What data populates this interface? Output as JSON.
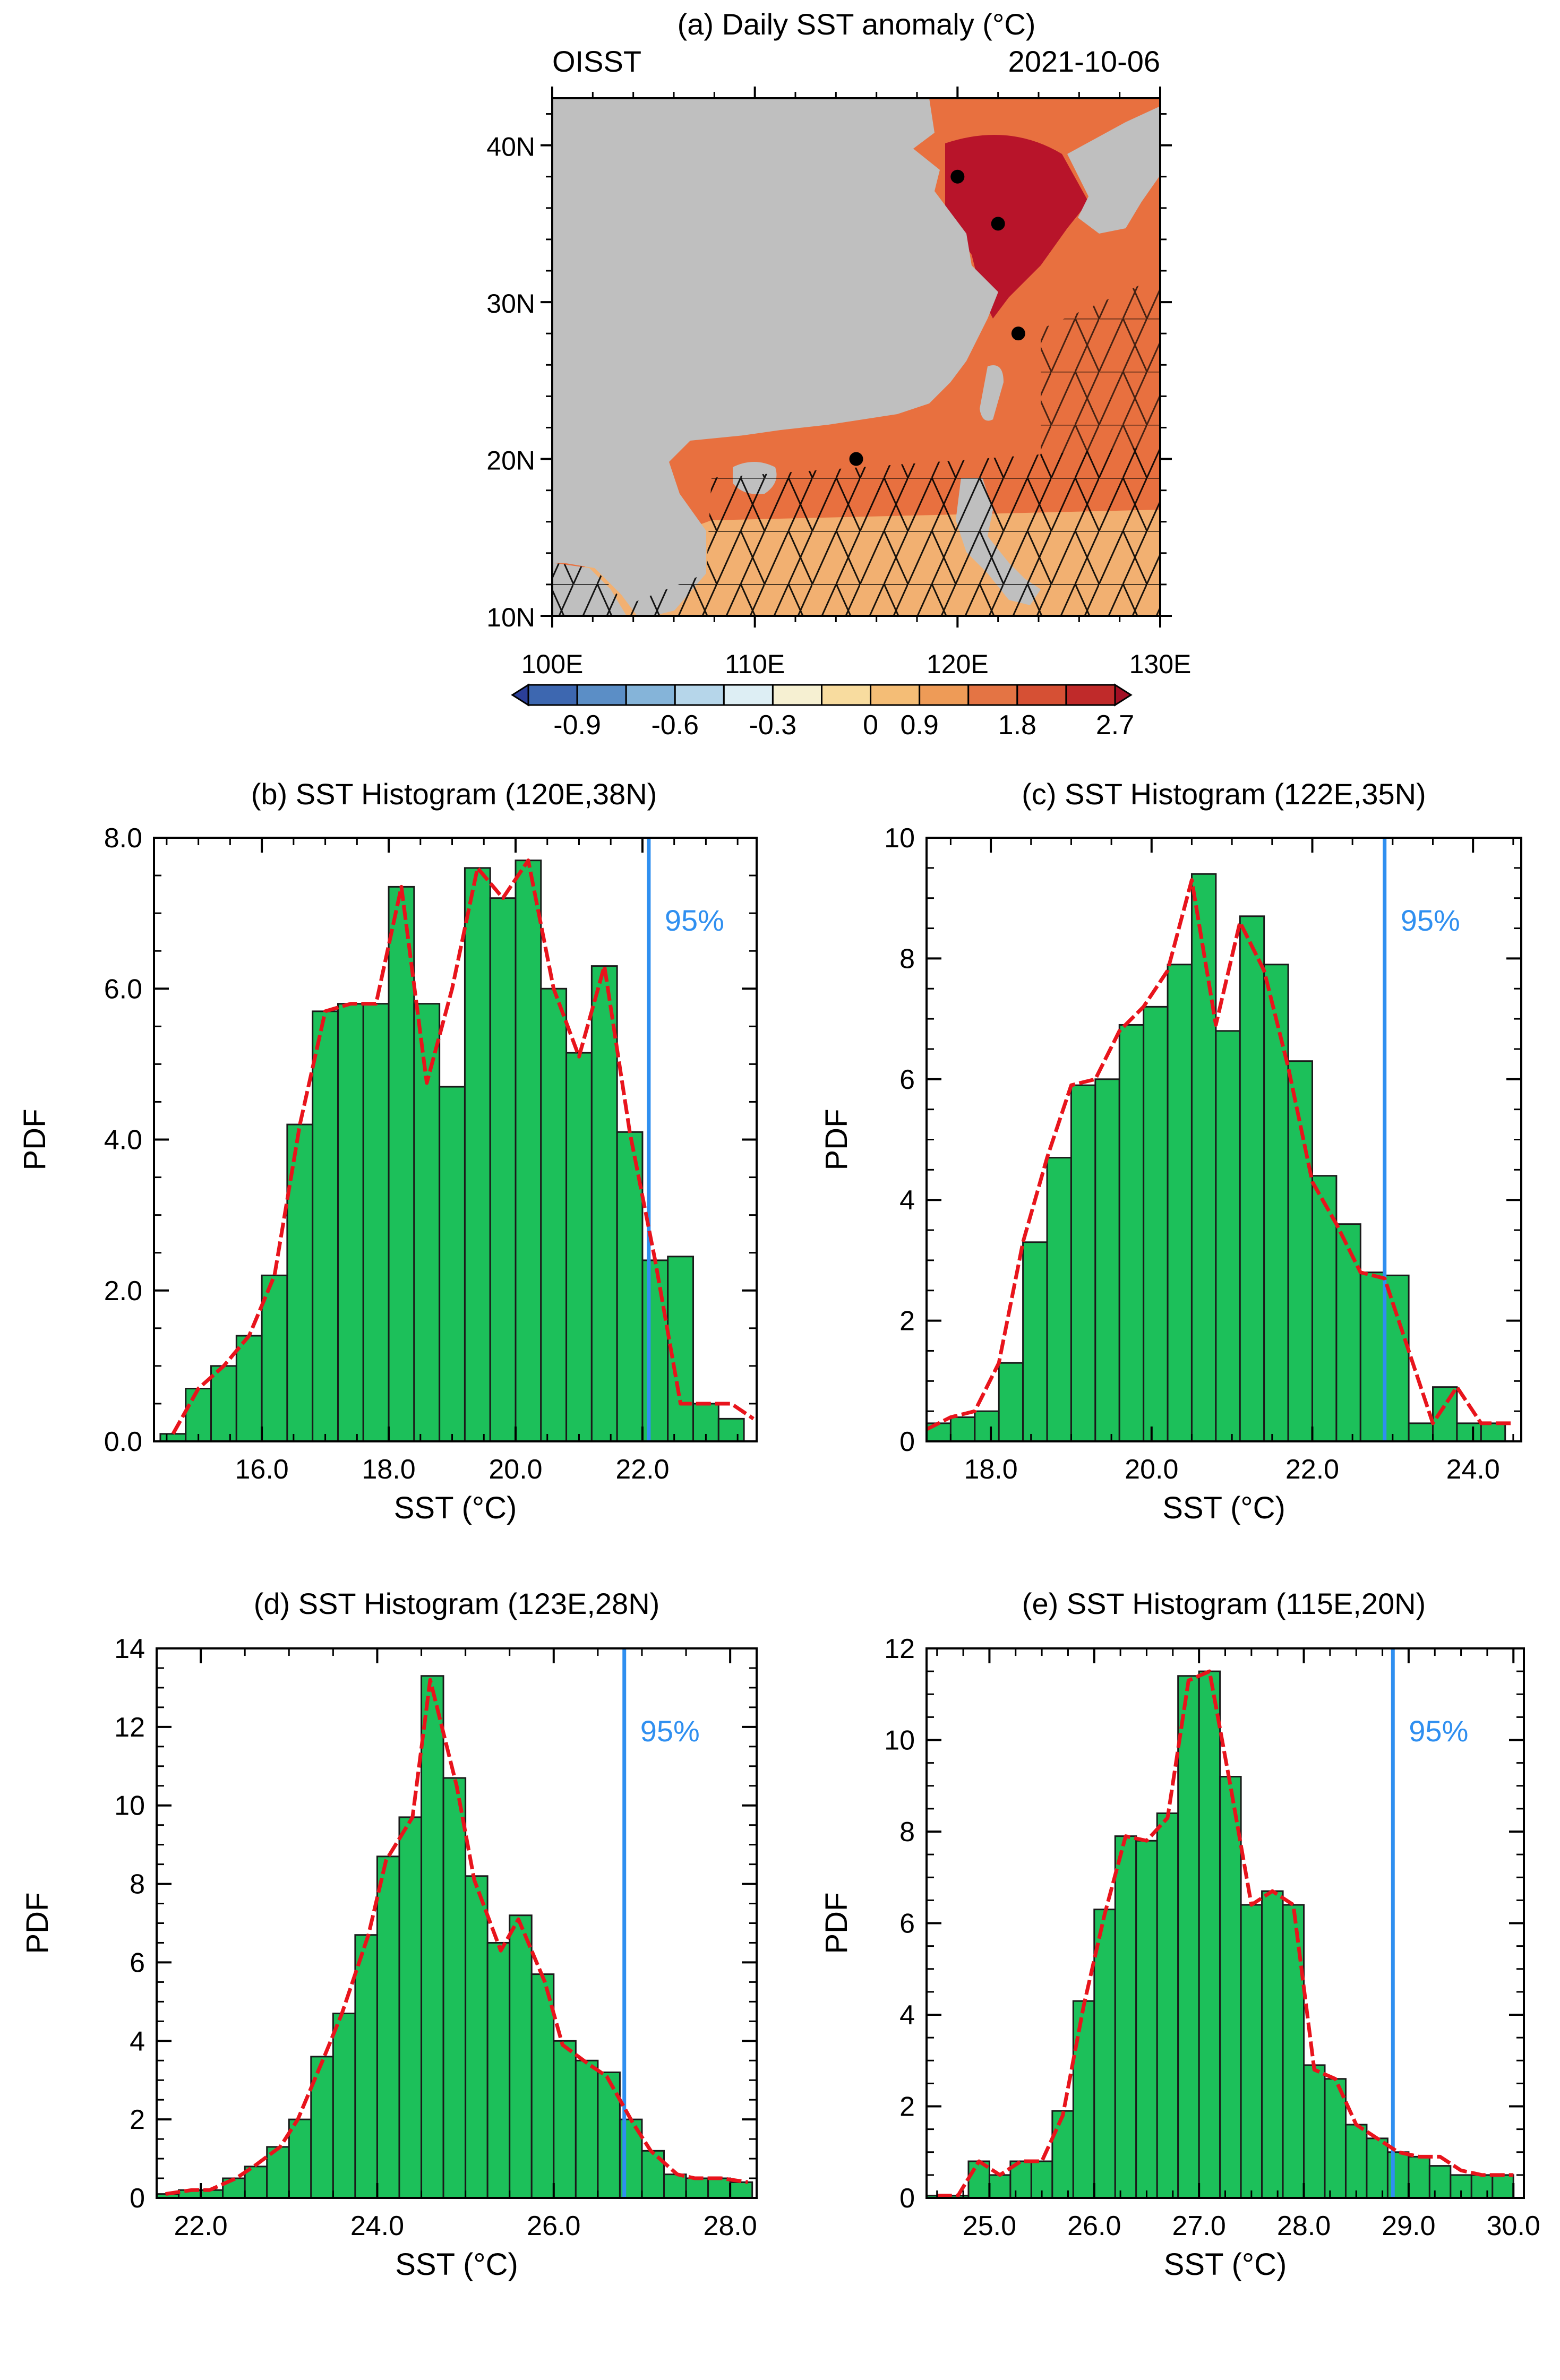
{
  "map": {
    "title": "(a) Daily SST anomaly (°C)",
    "left_label": "OISST",
    "right_label": "2021-10-06",
    "lat_ticks": [
      "40N",
      "30N",
      "20N",
      "10N"
    ],
    "lon_ticks": [
      "100E",
      "110E",
      "120E",
      "130E"
    ],
    "colorbar_labels": [
      "-0.9",
      "-0.6",
      "-0.3",
      "0",
      "0.9",
      "1.8",
      "2.7"
    ],
    "colorbar_colors": [
      "#2b3f98",
      "#3d67b0",
      "#5b8ec6",
      "#85b4d9",
      "#b6d6ea",
      "#ddeef4",
      "#f6f0d2",
      "#f8dc9f",
      "#f4bd76",
      "#ee9b57",
      "#e47444",
      "#d65034",
      "#c02a2a",
      "#a30f24"
    ],
    "marked_points": [
      {
        "lon": 120,
        "lat": 38
      },
      {
        "lon": 122,
        "lat": 35
      },
      {
        "lon": 123,
        "lat": 28
      },
      {
        "lon": 115,
        "lat": 20
      }
    ],
    "colors": {
      "land": "#bfbfbf",
      "ocean_warm": "#e8703f",
      "ocean_hot": "#b8142a",
      "ocean_mild": "#f2b071"
    }
  },
  "chart_data": [
    {
      "type": "bar",
      "title": "(b) SST Histogram (120E,38N)",
      "xlabel": "SST (°C)",
      "ylabel": "PDF",
      "xlim": [
        14.3,
        23.8
      ],
      "ylim": [
        0,
        8
      ],
      "bin_width": 0.4,
      "bin_starts": [
        14.4,
        14.8,
        15.2,
        15.6,
        16.0,
        16.4,
        16.8,
        17.2,
        17.6,
        18.0,
        18.4,
        18.8,
        19.2,
        19.6,
        20.0,
        20.4,
        20.8,
        21.2,
        21.6,
        22.0,
        22.4,
        22.8,
        23.2
      ],
      "values": [
        0.1,
        0.7,
        1.0,
        1.4,
        2.2,
        4.2,
        5.7,
        5.8,
        5.8,
        7.35,
        5.8,
        4.7,
        7.6,
        7.2,
        7.7,
        6.0,
        5.15,
        6.3,
        4.1,
        2.4,
        2.45,
        0.5,
        0.3
      ],
      "curve_x": [
        14.6,
        15.0,
        15.4,
        15.8,
        16.2,
        16.6,
        17.0,
        17.4,
        17.8,
        18.2,
        18.6,
        19.0,
        19.4,
        19.8,
        20.2,
        20.6,
        21.0,
        21.4,
        21.8,
        22.2,
        22.6,
        23.0,
        23.4,
        23.75
      ],
      "curve_y": [
        0.1,
        0.7,
        1.0,
        1.4,
        2.2,
        4.2,
        5.7,
        5.8,
        5.8,
        7.35,
        4.75,
        6.0,
        7.6,
        7.2,
        7.7,
        6.0,
        5.1,
        6.3,
        4.1,
        2.4,
        0.5,
        0.5,
        0.5,
        0.3
      ],
      "percentile_x": 22.1,
      "percentile_label": "95%",
      "xticks": [
        "16.0",
        "18.0",
        "20.0",
        "22.0"
      ],
      "xtick_values": [
        16,
        18,
        20,
        22
      ],
      "yticks": [
        "0.0",
        "2.0",
        "4.0",
        "6.0",
        "8.0"
      ],
      "ytick_values": [
        0,
        2,
        4,
        6,
        8
      ]
    },
    {
      "type": "bar",
      "title": "(c) SST Histogram (122E,35N)",
      "xlabel": "SST (°C)",
      "ylabel": "PDF",
      "xlim": [
        17.2,
        24.6
      ],
      "ylim": [
        0,
        10
      ],
      "bin_width": 0.3,
      "bin_starts": [
        17.2,
        17.5,
        17.8,
        18.1,
        18.4,
        18.7,
        19.0,
        19.3,
        19.6,
        19.9,
        20.2,
        20.5,
        20.8,
        21.1,
        21.4,
        21.7,
        22.0,
        22.3,
        22.6,
        22.9,
        23.2,
        23.5,
        23.8,
        24.1
      ],
      "values": [
        0.3,
        0.4,
        0.5,
        1.3,
        3.3,
        4.7,
        5.9,
        6.0,
        6.9,
        7.2,
        7.9,
        9.4,
        6.8,
        8.7,
        7.9,
        6.3,
        4.4,
        3.6,
        2.8,
        2.75,
        0.3,
        0.9,
        0.3,
        0.3
      ],
      "curve_x": [
        17.2,
        17.5,
        17.8,
        18.1,
        18.4,
        18.7,
        19.0,
        19.3,
        19.6,
        19.9,
        20.2,
        20.5,
        20.8,
        21.1,
        21.4,
        21.7,
        22.0,
        22.3,
        22.6,
        22.9,
        23.2,
        23.5,
        23.8,
        24.1,
        24.5
      ],
      "curve_y": [
        0.2,
        0.4,
        0.5,
        1.3,
        3.3,
        4.7,
        5.9,
        6.0,
        6.8,
        7.2,
        7.8,
        9.3,
        6.9,
        8.6,
        7.8,
        6.2,
        4.3,
        3.6,
        2.8,
        2.7,
        1.5,
        0.3,
        0.9,
        0.3,
        0.3
      ],
      "percentile_x": 22.9,
      "percentile_label": "95%",
      "xticks": [
        "18.0",
        "20.0",
        "22.0",
        "24.0"
      ],
      "xtick_values": [
        18,
        20,
        22,
        24
      ],
      "yticks": [
        "0",
        "2",
        "4",
        "6",
        "8",
        "10"
      ],
      "ytick_values": [
        0,
        2,
        4,
        6,
        8,
        10
      ]
    },
    {
      "type": "bar",
      "title": "(d) SST Histogram (123E,28N)",
      "xlabel": "SST (°C)",
      "ylabel": "PDF",
      "xlim": [
        21.5,
        28.3
      ],
      "ylim": [
        0,
        14
      ],
      "bin_width": 0.25,
      "bin_starts": [
        21.5,
        21.75,
        22.0,
        22.25,
        22.5,
        22.75,
        23.0,
        23.25,
        23.5,
        23.75,
        24.0,
        24.25,
        24.5,
        24.75,
        25.0,
        25.25,
        25.5,
        25.75,
        26.0,
        26.25,
        26.5,
        26.75,
        27.0,
        27.25,
        27.5,
        27.75,
        28.0
      ],
      "values": [
        0.1,
        0.2,
        0.2,
        0.5,
        0.8,
        1.3,
        2.0,
        3.6,
        4.7,
        6.7,
        8.7,
        9.7,
        13.3,
        10.7,
        8.2,
        6.5,
        7.2,
        5.7,
        4.0,
        3.5,
        3.2,
        2.0,
        1.2,
        0.6,
        0.5,
        0.5,
        0.4
      ],
      "curve_x": [
        21.6,
        21.9,
        22.1,
        22.4,
        22.6,
        22.9,
        23.1,
        23.4,
        23.6,
        23.9,
        24.1,
        24.4,
        24.6,
        24.9,
        25.1,
        25.4,
        25.6,
        25.9,
        26.1,
        26.4,
        26.6,
        26.9,
        27.1,
        27.4,
        27.6,
        27.9,
        28.2
      ],
      "curve_y": [
        0.1,
        0.2,
        0.2,
        0.5,
        0.8,
        1.3,
        2.0,
        3.6,
        4.7,
        6.7,
        8.6,
        9.7,
        13.2,
        10.5,
        8.1,
        6.3,
        7.1,
        5.5,
        3.9,
        3.4,
        3.1,
        1.9,
        1.2,
        0.6,
        0.5,
        0.5,
        0.4
      ],
      "percentile_x": 26.8,
      "percentile_label": "95%",
      "xticks": [
        "22.0",
        "24.0",
        "26.0",
        "28.0"
      ],
      "xtick_values": [
        22,
        24,
        26,
        28
      ],
      "yticks": [
        "0",
        "2",
        "4",
        "6",
        "8",
        "10",
        "12",
        "14"
      ],
      "ytick_values": [
        0,
        2,
        4,
        6,
        8,
        10,
        12,
        14
      ]
    },
    {
      "type": "bar",
      "title": "(e) SST Histogram (115E,20N)",
      "xlabel": "SST (°C)",
      "ylabel": "PDF",
      "xlim": [
        24.4,
        30.1
      ],
      "ylim": [
        0,
        12
      ],
      "bin_width": 0.2,
      "bin_starts": [
        24.4,
        24.6,
        24.8,
        25.0,
        25.2,
        25.4,
        25.6,
        25.8,
        26.0,
        26.2,
        26.4,
        26.6,
        26.8,
        27.0,
        27.2,
        27.4,
        27.6,
        27.8,
        28.0,
        28.2,
        28.4,
        28.6,
        28.8,
        29.0,
        29.2,
        29.4,
        29.6,
        29.8
      ],
      "values": [
        0.05,
        0.05,
        0.8,
        0.5,
        0.8,
        0.8,
        1.9,
        4.3,
        6.3,
        7.9,
        7.8,
        8.4,
        11.4,
        11.5,
        9.2,
        6.4,
        6.7,
        6.4,
        2.9,
        2.6,
        1.6,
        1.3,
        1.0,
        0.9,
        0.7,
        0.5,
        0.5,
        0.5
      ],
      "curve_x": [
        24.5,
        24.7,
        24.9,
        25.1,
        25.3,
        25.5,
        25.7,
        25.9,
        26.1,
        26.3,
        26.5,
        26.7,
        26.9,
        27.1,
        27.3,
        27.5,
        27.7,
        27.9,
        28.1,
        28.3,
        28.5,
        28.7,
        28.9,
        29.1,
        29.3,
        29.5,
        29.7,
        30.0
      ],
      "curve_y": [
        0.05,
        0.05,
        0.8,
        0.5,
        0.8,
        0.8,
        1.8,
        4.2,
        6.2,
        7.9,
        7.8,
        8.3,
        11.3,
        11.5,
        9.0,
        6.4,
        6.7,
        6.4,
        2.8,
        2.6,
        1.6,
        1.3,
        1.0,
        0.9,
        0.9,
        0.6,
        0.5,
        0.5
      ],
      "percentile_x": 28.85,
      "percentile_label": "95%",
      "xticks": [
        "25.0",
        "26.0",
        "27.0",
        "28.0",
        "29.0",
        "30.0"
      ],
      "xtick_values": [
        25,
        26,
        27,
        28,
        29,
        30
      ],
      "yticks": [
        "0",
        "2",
        "4",
        "6",
        "8",
        "10",
        "12"
      ],
      "ytick_values": [
        0,
        2,
        4,
        6,
        8,
        10,
        12
      ]
    }
  ]
}
